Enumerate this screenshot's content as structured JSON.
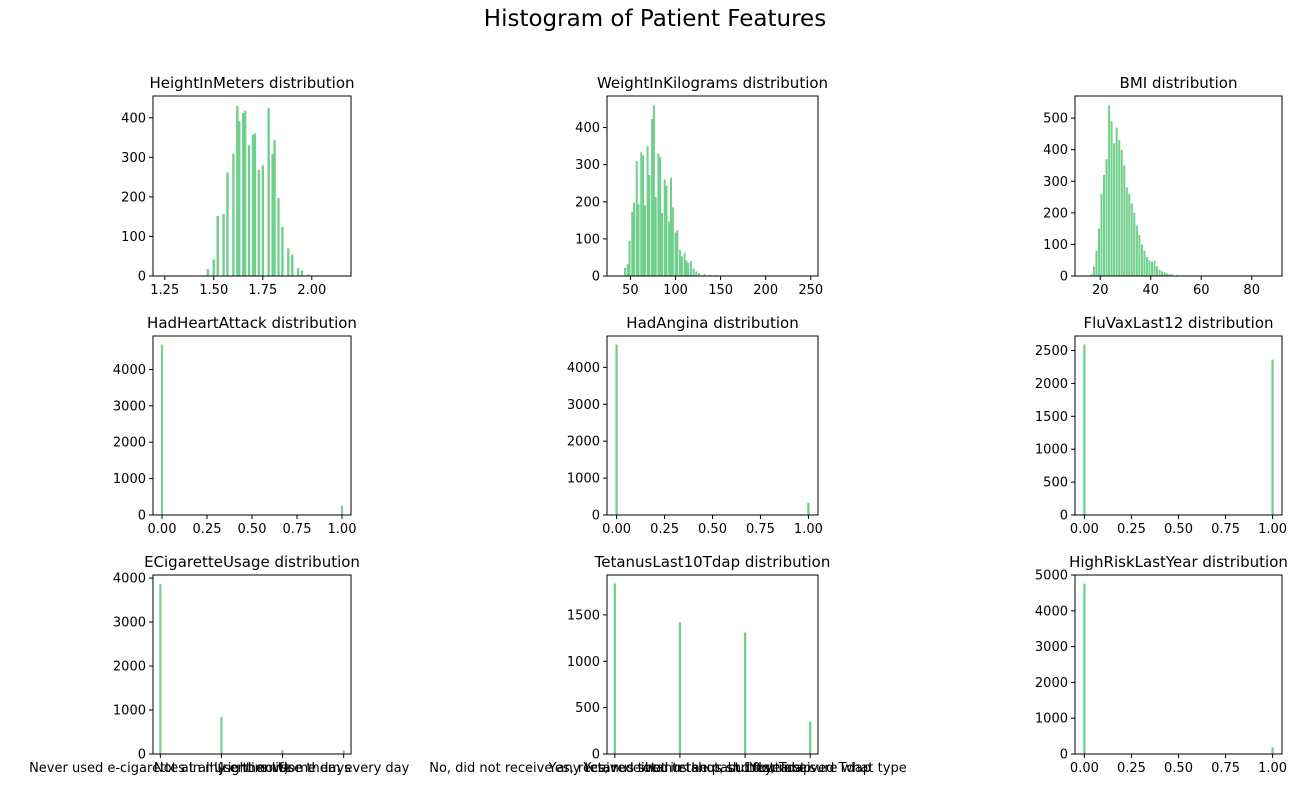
{
  "figure": {
    "title": "Histogram of Patient Features"
  },
  "style": {
    "bar_color": "#6fcf8b",
    "axis_color": "#000000"
  },
  "chart_data": [
    {
      "type": "bar",
      "title": "HeightInMeters distribution",
      "xlim": [
        1.19,
        2.2
      ],
      "ylim": [
        0,
        455
      ],
      "xticks": [
        1.25,
        1.5,
        1.75,
        2.0
      ],
      "xtick_labels": [
        "1.25",
        "1.50",
        "1.75",
        "2.00"
      ],
      "yticks": [
        0,
        100,
        200,
        300,
        400
      ],
      "bars": [
        [
          1.47,
          18
        ],
        [
          1.5,
          42
        ],
        [
          1.52,
          152
        ],
        [
          1.55,
          157
        ],
        [
          1.57,
          262
        ],
        [
          1.6,
          309
        ],
        [
          1.62,
          430
        ],
        [
          1.63,
          391
        ],
        [
          1.65,
          412
        ],
        [
          1.66,
          418
        ],
        [
          1.68,
          330
        ],
        [
          1.7,
          357
        ],
        [
          1.71,
          360
        ],
        [
          1.73,
          268
        ],
        [
          1.75,
          280
        ],
        [
          1.78,
          425
        ],
        [
          1.8,
          308
        ],
        [
          1.81,
          344
        ],
        [
          1.83,
          197
        ],
        [
          1.85,
          124
        ],
        [
          1.88,
          70
        ],
        [
          1.9,
          54
        ],
        [
          1.93,
          20
        ],
        [
          1.95,
          14
        ],
        [
          1.98,
          4
        ]
      ],
      "bar_width": 0.012
    },
    {
      "type": "bar",
      "title": "WeightInKilograms distribution",
      "xlim": [
        24,
        258
      ],
      "ylim": [
        0,
        485
      ],
      "xticks": [
        50,
        100,
        150,
        200,
        250
      ],
      "xtick_labels": [
        "50",
        "100",
        "150",
        "200",
        "250"
      ],
      "yticks": [
        0,
        100,
        200,
        300,
        400
      ],
      "bars": [
        [
          44,
          22
        ],
        [
          47,
          32
        ],
        [
          49,
          95
        ],
        [
          52,
          173
        ],
        [
          54,
          198
        ],
        [
          57,
          310
        ],
        [
          59,
          193
        ],
        [
          62,
          333
        ],
        [
          64,
          325
        ],
        [
          66,
          191
        ],
        [
          69,
          350
        ],
        [
          71,
          272
        ],
        [
          74,
          423
        ],
        [
          76,
          460
        ],
        [
          78,
          213
        ],
        [
          81,
          330
        ],
        [
          83,
          320
        ],
        [
          85,
          170
        ],
        [
          88,
          260
        ],
        [
          90,
          243
        ],
        [
          93,
          147
        ],
        [
          95,
          265
        ],
        [
          97,
          185
        ],
        [
          100,
          117
        ],
        [
          102,
          123
        ],
        [
          105,
          70
        ],
        [
          107,
          53
        ],
        [
          110,
          63
        ],
        [
          112,
          42
        ],
        [
          114,
          35
        ],
        [
          117,
          40
        ],
        [
          120,
          20
        ],
        [
          123,
          12
        ],
        [
          126,
          8
        ],
        [
          132,
          5
        ],
        [
          138,
          3
        ],
        [
          145,
          2
        ]
      ],
      "bar_width": 1.7
    },
    {
      "type": "bar",
      "title": "BMI distribution",
      "xlim": [
        10,
        92
      ],
      "ylim": [
        0,
        570
      ],
      "xticks": [
        20,
        40,
        60,
        80
      ],
      "xtick_labels": [
        "20",
        "40",
        "60",
        "80"
      ],
      "yticks": [
        0,
        100,
        200,
        300,
        400,
        500
      ],
      "bars": [
        [
          16.5,
          5
        ],
        [
          17.5,
          30
        ],
        [
          18.5,
          80
        ],
        [
          19.5,
          150
        ],
        [
          20.5,
          260
        ],
        [
          21.5,
          320
        ],
        [
          22.5,
          370
        ],
        [
          23.5,
          540
        ],
        [
          24.5,
          490
        ],
        [
          25.5,
          420
        ],
        [
          26.5,
          470
        ],
        [
          27.5,
          430
        ],
        [
          28.5,
          400
        ],
        [
          29.5,
          350
        ],
        [
          30.5,
          280
        ],
        [
          31.5,
          260
        ],
        [
          32.5,
          230
        ],
        [
          33.5,
          200
        ],
        [
          34.5,
          160
        ],
        [
          35.5,
          130
        ],
        [
          36.5,
          100
        ],
        [
          37.5,
          80
        ],
        [
          38.5,
          60
        ],
        [
          39.5,
          50
        ],
        [
          40.5,
          45
        ],
        [
          41.5,
          48
        ],
        [
          42.5,
          30
        ],
        [
          43.5,
          20
        ],
        [
          44.5,
          15
        ],
        [
          45.5,
          12
        ],
        [
          46.5,
          8
        ],
        [
          47.5,
          6
        ],
        [
          48.5,
          5
        ],
        [
          50.5,
          3
        ],
        [
          52.5,
          2
        ]
      ],
      "bar_width": 0.75
    },
    {
      "type": "bar",
      "title": "HadHeartAttack distribution",
      "xlim": [
        -0.05,
        1.05
      ],
      "ylim": [
        0,
        4920
      ],
      "xticks": [
        0,
        0.25,
        0.5,
        0.75,
        1.0
      ],
      "xtick_labels": [
        "0.00",
        "0.25",
        "0.50",
        "0.75",
        "1.00"
      ],
      "yticks": [
        0,
        1000,
        2000,
        3000,
        4000
      ],
      "bars": [
        [
          0.0,
          4680
        ],
        [
          1.0,
          260
        ]
      ],
      "bar_width": 0.012
    },
    {
      "type": "bar",
      "title": "HadAngina distribution",
      "xlim": [
        -0.05,
        1.05
      ],
      "ylim": [
        0,
        4850
      ],
      "xticks": [
        0,
        0.25,
        0.5,
        0.75,
        1.0
      ],
      "xtick_labels": [
        "0.00",
        "0.25",
        "0.50",
        "0.75",
        "1.00"
      ],
      "yticks": [
        0,
        1000,
        2000,
        3000,
        4000
      ],
      "bars": [
        [
          0.0,
          4620
        ],
        [
          1.0,
          330
        ]
      ],
      "bar_width": 0.012
    },
    {
      "type": "bar",
      "title": "FluVaxLast12 distribution",
      "xlim": [
        -0.05,
        1.05
      ],
      "ylim": [
        0,
        2720
      ],
      "xticks": [
        0,
        0.25,
        0.5,
        0.75,
        1.0
      ],
      "xtick_labels": [
        "0.00",
        "0.25",
        "0.50",
        "0.75",
        "1.00"
      ],
      "yticks": [
        0,
        500,
        1000,
        1500,
        2000,
        2500
      ],
      "bars": [
        [
          0.0,
          2590
        ],
        [
          1.0,
          2360
        ]
      ],
      "bar_width": 0.012
    },
    {
      "type": "bar",
      "title": "ECigaretteUsage distribution",
      "xlim": [
        -0.12,
        3.12
      ],
      "ylim": [
        0,
        4070
      ],
      "xticks": [
        0,
        1,
        2,
        3
      ],
      "xtick_labels": [
        "Never used e-cigarettes in my entire life",
        "Not at all (right now)",
        "Use them some days",
        "Use them every day"
      ],
      "yticks": [
        0,
        1000,
        2000,
        3000,
        4000
      ],
      "bars": [
        [
          0,
          3870
        ],
        [
          1,
          840
        ],
        [
          2,
          90
        ],
        [
          3,
          80
        ]
      ],
      "bar_width": 0.035
    },
    {
      "type": "bar",
      "title": "TetanusLast10Tdap distribution",
      "xlim": [
        -0.12,
        3.12
      ],
      "ylim": [
        0,
        1930
      ],
      "xticks": [
        0,
        1,
        2,
        3
      ],
      "xtick_labels": [
        "No, did not receive any tetanus shot in the past 10 years",
        "Yes, received tetanus shot, but not Tdap",
        "Yes, received tetanus shot but not sure what type",
        "Yes, received Tdap"
      ],
      "yticks": [
        0,
        500,
        1000,
        1500
      ],
      "bars": [
        [
          0,
          1840
        ],
        [
          1,
          1420
        ],
        [
          2,
          1310
        ],
        [
          3,
          350
        ]
      ],
      "bar_width": 0.035
    },
    {
      "type": "bar",
      "title": "HighRiskLastYear distribution",
      "xlim": [
        -0.05,
        1.05
      ],
      "ylim": [
        0,
        5000
      ],
      "xticks": [
        0,
        0.25,
        0.5,
        0.75,
        1.0
      ],
      "xtick_labels": [
        "0.00",
        "0.25",
        "0.50",
        "0.75",
        "1.00"
      ],
      "yticks": [
        0,
        1000,
        2000,
        3000,
        4000,
        5000
      ],
      "bars": [
        [
          0.0,
          4760
        ],
        [
          1.0,
          190
        ]
      ],
      "bar_width": 0.012
    }
  ]
}
